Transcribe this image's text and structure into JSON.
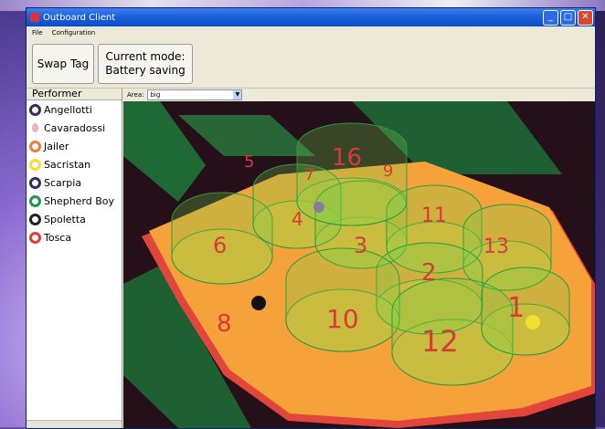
{
  "window": {
    "title": "Outboard Client"
  },
  "menu": [
    "File",
    "Configuration"
  ],
  "toolbar": {
    "swap_label": "Swap Tag",
    "mode_line1": "Current mode:",
    "mode_line2": "Battery saving"
  },
  "sidebar": {
    "header": "Performer",
    "items": [
      {
        "label": "Angellotti",
        "color": "#3a2a5a"
      },
      {
        "label": "Cavaradossi",
        "color": "#f0b0b8"
      },
      {
        "label": "Jailer",
        "color": "#f07a40"
      },
      {
        "label": "Sacristan",
        "color": "#f5e030"
      },
      {
        "label": "Scarpia",
        "color": "#3a2a5a"
      },
      {
        "label": "Shepherd Boy",
        "color": "#1a9a4a"
      },
      {
        "label": "Spoletta",
        "color": "#222222"
      },
      {
        "label": "Tosca",
        "color": "#e83a30"
      }
    ]
  },
  "area": {
    "label": "Area:",
    "value": "big"
  },
  "zones": [
    "16",
    "9",
    "7",
    "5",
    "11",
    "4",
    "13",
    "6",
    "3",
    "2",
    "1",
    "8",
    "10",
    "12"
  ]
}
